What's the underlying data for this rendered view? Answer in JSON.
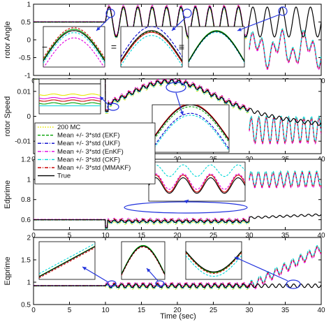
{
  "figure": {
    "xlabel": "Time (sec)",
    "x_ticks": [
      0,
      5,
      10,
      15,
      20,
      25,
      30,
      35,
      40
    ],
    "colors": {
      "mc": "#e8e800",
      "ekf": "#00a000",
      "ukf": "#0000cc",
      "enkf": "#e000e0",
      "ckf": "#00d8d8",
      "mmakf": "#cc0000",
      "true": "#000000",
      "annotation": "#2233dd"
    },
    "inset_symbols": [
      "−",
      "=",
      "≡"
    ]
  },
  "legend": {
    "placement": "panel-2 lower-left",
    "entries": [
      {
        "label": "200 MC",
        "color_key": "mc",
        "style": "dotted"
      },
      {
        "label": "Mean +/- 3*std (EKF)",
        "color_key": "ekf",
        "style": "dashed"
      },
      {
        "label": "Mean +/- 3*std (UKF)",
        "color_key": "ukf",
        "style": "dashdot"
      },
      {
        "label": "Mean +/- 3*std (EnKF)",
        "color_key": "enkf",
        "style": "dashdot"
      },
      {
        "label": "Mean +/- 3*std (CKF)",
        "color_key": "ckf",
        "style": "dashdot"
      },
      {
        "label": "Mean +/- 3*std (MMAKF)",
        "color_key": "mmakf",
        "style": "dashdot"
      },
      {
        "label": "True",
        "color_key": "true",
        "style": "solid"
      }
    ]
  },
  "chart_data": [
    {
      "type": "line",
      "ylabel": "rotor Angle",
      "xlim": [
        0,
        40
      ],
      "ylim": [
        -1,
        1
      ],
      "y_ticks": [
        -1,
        -0.5,
        0,
        0.5,
        1
      ],
      "grid": false,
      "series": [
        {
          "name": "True",
          "x": [
            0,
            10,
            11,
            12,
            14,
            16,
            18,
            20,
            22,
            24,
            26,
            28,
            30,
            32,
            34,
            36,
            38,
            40
          ],
          "y": [
            0.5,
            0.5,
            0.9,
            0.1,
            0.9,
            0.1,
            0.9,
            0.1,
            0.9,
            0.1,
            0.9,
            0.1,
            0.9,
            0.1,
            0.9,
            0.1,
            0.9,
            0.1
          ]
        },
        {
          "name": "Mean +/- 3*std (EnKF)",
          "x": [
            30,
            31,
            32,
            33,
            34,
            35,
            36,
            37,
            38,
            39,
            40
          ],
          "y": [
            0.6,
            -0.8,
            0.2,
            -0.9,
            0.3,
            -0.5,
            0.1,
            -0.9,
            0.3,
            -0.6,
            0.2
          ]
        }
      ]
    },
    {
      "type": "line",
      "ylabel": "rotor Speed",
      "xlim": [
        0,
        40
      ],
      "ylim": [
        -0.015,
        0.015
      ],
      "y_ticks": [
        -0.01,
        0,
        0.01
      ],
      "grid": false,
      "series": [
        {
          "name": "True",
          "x": [
            0,
            10,
            10.5,
            12,
            14,
            16,
            18,
            20,
            22,
            24,
            26,
            28,
            30,
            32,
            34,
            36,
            38,
            40
          ],
          "y": [
            0.002,
            0.002,
            0.001,
            0.004,
            0.01,
            0.013,
            0.014,
            0.014,
            0.012,
            0.01,
            0.007,
            0.004,
            0.0,
            -0.002,
            -0.003,
            -0.004,
            -0.004,
            -0.005
          ]
        },
        {
          "name": "Mean +/- 3*std (EnKF)",
          "x": [
            30,
            31,
            32,
            33,
            34,
            35,
            36,
            37,
            38,
            39,
            40
          ],
          "y": [
            0.0,
            -0.01,
            -0.001,
            -0.011,
            0.0,
            -0.009,
            -0.002,
            -0.011,
            0.0,
            -0.01,
            -0.002
          ]
        }
      ]
    },
    {
      "type": "line",
      "ylabel": "Edprime",
      "xlim": [
        0,
        40
      ],
      "ylim": [
        0.5,
        1.2
      ],
      "y_ticks": [
        0.6,
        0.8,
        1,
        1.2
      ],
      "grid": false,
      "series": [
        {
          "name": "True",
          "x": [
            0,
            10,
            10.2,
            12,
            16,
            20,
            24,
            28,
            30,
            31,
            34,
            38,
            40
          ],
          "y": [
            0.6,
            0.6,
            0.52,
            0.56,
            0.6,
            0.61,
            0.6,
            0.59,
            0.58,
            0.62,
            0.63,
            0.64,
            0.66
          ]
        },
        {
          "name": "Mean +/- 3*std (EnKF)",
          "x": [
            30,
            31,
            32,
            33,
            34,
            35,
            36,
            37,
            38,
            39,
            40
          ],
          "y": [
            0.58,
            1.05,
            0.95,
            1.08,
            0.96,
            1.06,
            0.97,
            1.07,
            0.95,
            1.05,
            0.98
          ]
        }
      ]
    },
    {
      "type": "line",
      "ylabel": "Eqprime",
      "xlim": [
        0,
        40
      ],
      "ylim": [
        0.5,
        2
      ],
      "y_ticks": [
        0.5,
        1,
        1.5,
        2
      ],
      "grid": false,
      "series": [
        {
          "name": "True",
          "x": [
            0,
            10,
            12,
            16,
            20,
            24,
            28,
            30,
            32,
            34,
            36,
            38,
            40
          ],
          "y": [
            0.9,
            0.9,
            0.95,
            0.93,
            0.95,
            0.93,
            0.95,
            0.93,
            0.9,
            0.88,
            0.87,
            0.88,
            0.9
          ]
        },
        {
          "name": "Mean +/- 3*std (EnKF)",
          "x": [
            30,
            31,
            32,
            33,
            34,
            35,
            36,
            37,
            38,
            39,
            40
          ],
          "y": [
            0.9,
            0.7,
            1.0,
            0.8,
            1.1,
            1.2,
            1.3,
            1.45,
            1.55,
            1.65,
            1.75
          ]
        }
      ]
    }
  ]
}
